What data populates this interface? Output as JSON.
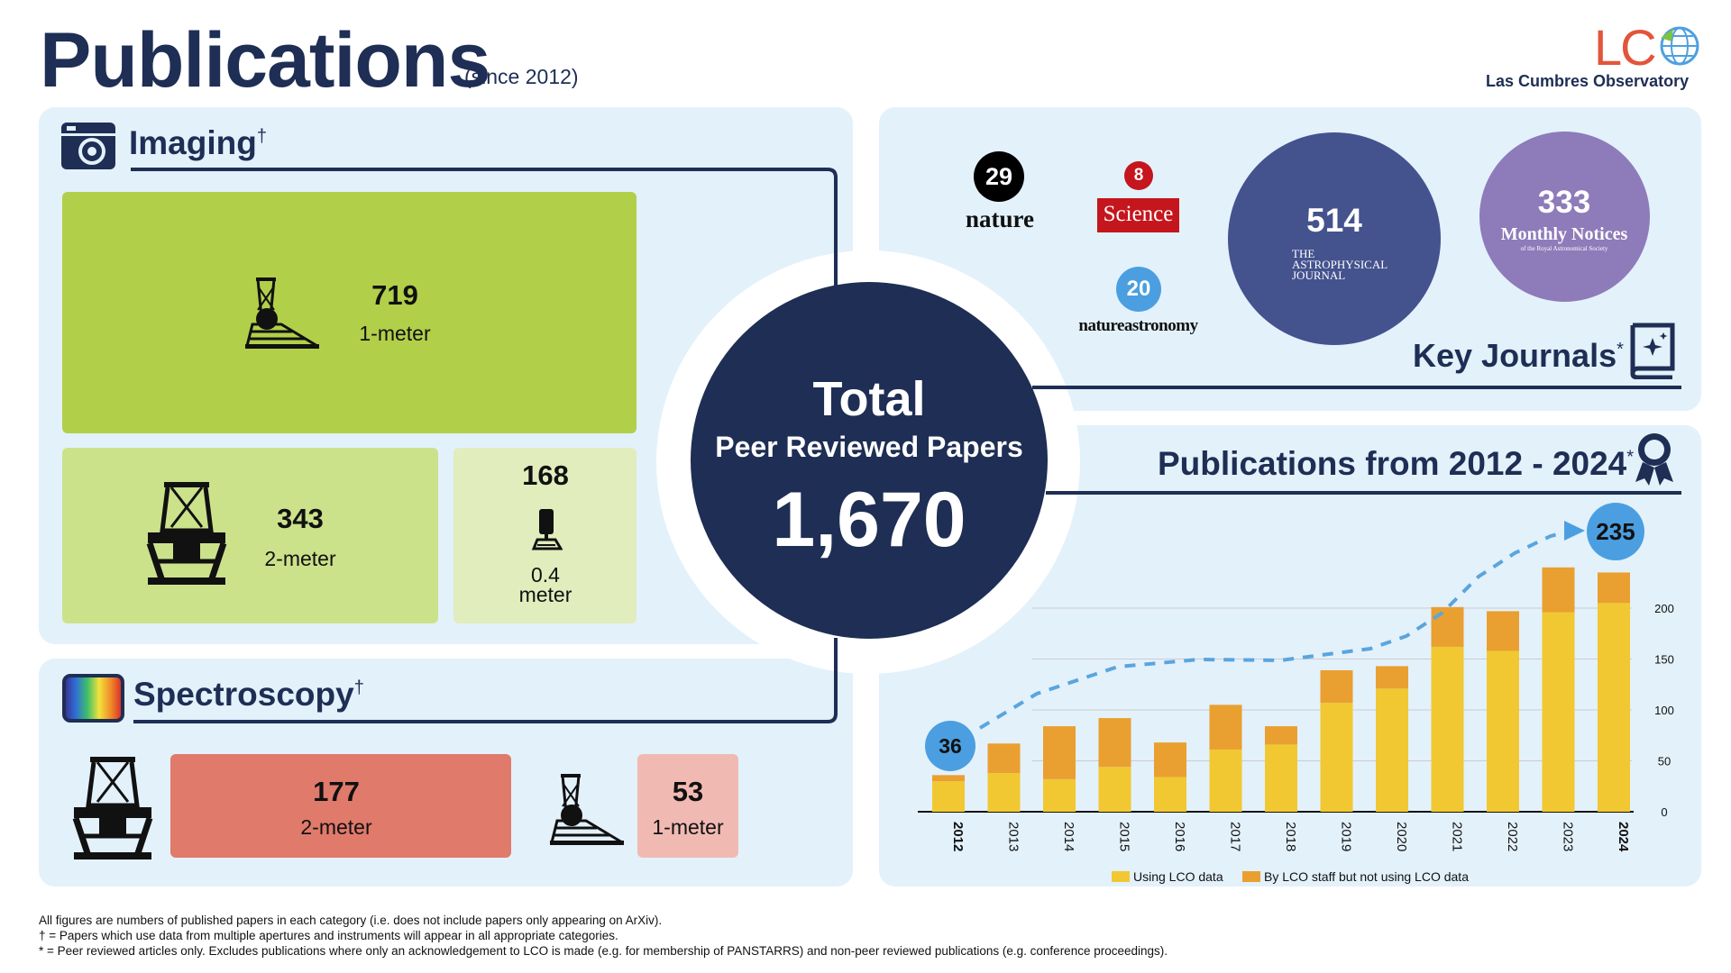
{
  "header": {
    "title": "Publications",
    "subtitle": "(since 2012)",
    "logo_text": "LC",
    "org_name": "Las Cumbres Observatory"
  },
  "imaging": {
    "title": "Imaging",
    "mark": "†",
    "tiles": [
      {
        "value": "719",
        "label": "1-meter",
        "color": "#b2cf4a"
      },
      {
        "value": "343",
        "label": "2-meter",
        "color": "#cbe28b"
      },
      {
        "value": "168",
        "label": "0.4 meter",
        "label_line1": "0.4",
        "label_line2": "meter",
        "color": "#e1edbd"
      }
    ]
  },
  "spectroscopy": {
    "title": "Spectroscopy",
    "mark": "†",
    "tiles": [
      {
        "value": "177",
        "label": "2-meter",
        "color": "#e07a6b"
      },
      {
        "value": "53",
        "label": "1-meter",
        "color": "#f0bab3"
      }
    ]
  },
  "total": {
    "title": "Total",
    "subtitle": "Peer Reviewed Papers",
    "value": "1,670"
  },
  "journals": {
    "title": "Key Journals",
    "mark": "*",
    "items": [
      {
        "count": "29",
        "name": "nature",
        "color": "#000000"
      },
      {
        "count": "8",
        "name": "Science",
        "color": "#c4161c"
      },
      {
        "count": "20",
        "name": "natureastronomy",
        "color": "#4b9fe0"
      },
      {
        "count": "514",
        "name": "THE ASTROPHYSICAL JOURNAL",
        "name_line1": "THE",
        "name_line2": "ASTROPHYSICAL",
        "name_line3": "JOURNAL",
        "color": "#44528e"
      },
      {
        "count": "333",
        "name": "Monthly Notices",
        "subname": "of the Royal Astronomical Society",
        "color": "#8e7bb9"
      }
    ]
  },
  "chart": {
    "title": "Publications from 2012 - 2024",
    "mark": "*",
    "start_badge": "36",
    "end_badge": "235"
  },
  "chart_data": {
    "type": "bar",
    "stacked": true,
    "title": "Publications from 2012 - 2024*",
    "categories": [
      "2012",
      "2013",
      "2014",
      "2015",
      "2016",
      "2017",
      "2018",
      "2019",
      "2020",
      "2021",
      "2022",
      "2023",
      "2024"
    ],
    "series": [
      {
        "name": "Using LCO data",
        "color": "#f1c832",
        "values": [
          30,
          38,
          32,
          44,
          34,
          61,
          66,
          107,
          121,
          162,
          158,
          196,
          205
        ]
      },
      {
        "name": "By LCO staff but not using LCO data",
        "color": "#e9a030",
        "values": [
          6,
          29,
          52,
          48,
          34,
          44,
          18,
          32,
          22,
          39,
          39,
          44,
          30
        ]
      }
    ],
    "y_ticks": [
      "0",
      "50",
      "100",
      "150",
      "200"
    ],
    "ylim": [
      0,
      240
    ],
    "bold_categories": [
      "2012",
      "2024"
    ],
    "legend_position": "bottom"
  },
  "footnotes": [
    "All figures are numbers of published papers in each category (i.e. does not include papers only appearing on ArXiv).",
    "† = Papers which use data from multiple apertures and instruments will appear in all appropriate categories.",
    "* = Peer reviewed articles only. Excludes publications where only an acknowledgement to LCO is made (e.g. for membership of PANSTARRS) and non-peer reviewed publications (e.g. conference proceedings)."
  ]
}
